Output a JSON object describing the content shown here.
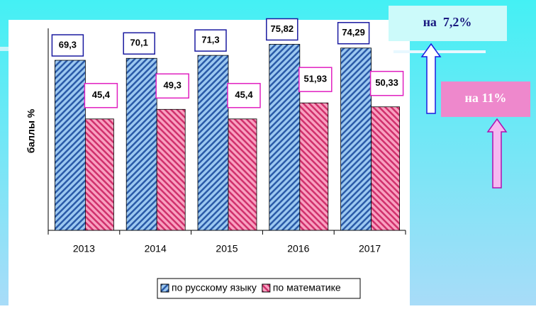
{
  "chart_data": {
    "type": "bar",
    "y_label": "баллы %",
    "categories": [
      "2013",
      "2014",
      "2015",
      "2016",
      "2017"
    ],
    "series": [
      {
        "name": "по русскому языку",
        "color": "#9cc8f0",
        "border": "#1a1aa0",
        "values": [
          69.3,
          70.1,
          71.3,
          75.82,
          74.29
        ],
        "value_labels": [
          "69,3",
          "70,1",
          "71,3",
          "75,82",
          "74,29"
        ]
      },
      {
        "name": "по математике",
        "color": "#f07aa8",
        "border": "#e020c0",
        "values": [
          45.4,
          49.3,
          45.4,
          51.93,
          50.33
        ],
        "value_labels": [
          "45,4",
          "49,3",
          "45,4",
          "51,93",
          "50,33"
        ]
      }
    ],
    "ylim": [
      0,
      80
    ],
    "annotations": [
      "на  7,2%",
      "на 11%"
    ]
  }
}
